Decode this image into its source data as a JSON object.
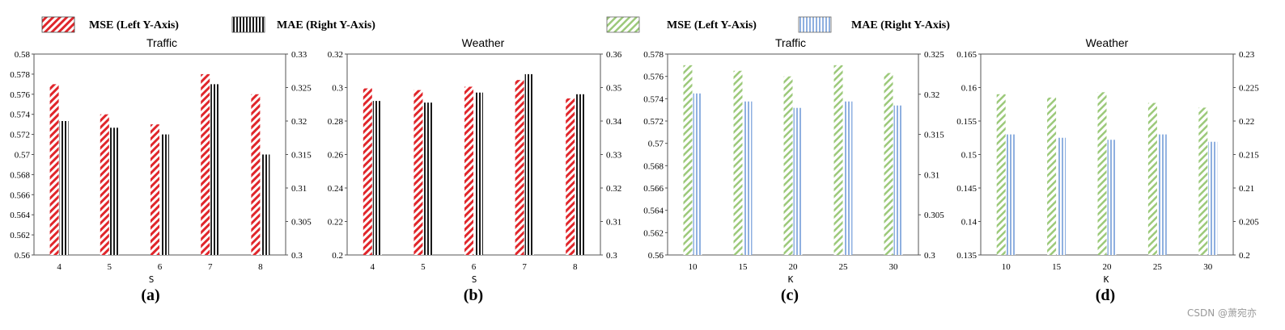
{
  "legends": [
    {
      "label": "MSE (Left Y-Axis)",
      "pattern": "red-diag"
    },
    {
      "label": "MAE (Right Y-Axis)",
      "pattern": "black-vert"
    },
    {
      "label": "MSE (Left Y-Axis)",
      "pattern": "green-diag"
    },
    {
      "label": "MAE (Right Y-Axis)",
      "pattern": "blue-vert"
    }
  ],
  "colors": {
    "mse_red": "#e0262b",
    "mae_black": "#1a1a1a",
    "mse_green": "#9cc97a",
    "mae_blue": "#8fb0e0"
  },
  "watermark": "CSDN @萧宛亦",
  "chart_data": [
    {
      "type": "bar",
      "panel_label": "(a)",
      "title": "Traffic",
      "xlabel": "S",
      "categories": [
        "4",
        "5",
        "6",
        "7",
        "8"
      ],
      "ylim_left": [
        0.56,
        0.58
      ],
      "yticks_left": [
        "0.56",
        "0.562",
        "0.564",
        "0.566",
        "0.568",
        "0.57",
        "0.572",
        "0.574",
        "0.576",
        "0.578",
        "0.58"
      ],
      "ylim_right": [
        0.3,
        0.33
      ],
      "yticks_right": [
        "0.3",
        "0.305",
        "0.31",
        "0.315",
        "0.32",
        "0.325",
        "0.33"
      ],
      "series": [
        {
          "name": "MSE (Left Y-Axis)",
          "axis": "left",
          "pattern": "red-diag",
          "values": [
            0.577,
            0.574,
            0.573,
            0.578,
            0.576
          ]
        },
        {
          "name": "MAE (Right Y-Axis)",
          "axis": "right",
          "pattern": "black-vert",
          "values": [
            0.32,
            0.319,
            0.318,
            0.3255,
            0.315
          ]
        }
      ]
    },
    {
      "type": "bar",
      "panel_label": "(b)",
      "title": "Weather",
      "xlabel": "S",
      "categories": [
        "4",
        "5",
        "6",
        "7",
        "8"
      ],
      "ylim_left": [
        0.2,
        0.32
      ],
      "yticks_left": [
        "0.2",
        "0.22",
        "0.24",
        "0.26",
        "0.28",
        "0.3",
        "0.32"
      ],
      "ylim_right": [
        0.3,
        0.36
      ],
      "yticks_right": [
        "0.3",
        "0.31",
        "0.32",
        "0.33",
        "0.34",
        "0.35",
        "0.36"
      ],
      "series": [
        {
          "name": "MSE (Left Y-Axis)",
          "axis": "left",
          "pattern": "red-diag",
          "values": [
            0.2995,
            0.2985,
            0.3005,
            0.3045,
            0.2935
          ]
        },
        {
          "name": "MAE (Right Y-Axis)",
          "axis": "right",
          "pattern": "black-vert",
          "values": [
            0.346,
            0.3455,
            0.3485,
            0.354,
            0.348
          ]
        }
      ]
    },
    {
      "type": "bar",
      "panel_label": "(c)",
      "title": "Traffic",
      "xlabel": "K",
      "categories": [
        "10",
        "15",
        "20",
        "25",
        "30"
      ],
      "ylim_left": [
        0.56,
        0.578
      ],
      "yticks_left": [
        "0.56",
        "0.562",
        "0.564",
        "0.566",
        "0.568",
        "0.57",
        "0.572",
        "0.574",
        "0.576",
        "0.578"
      ],
      "ylim_right": [
        0.3,
        0.325
      ],
      "yticks_right": [
        "0.3",
        "0.305",
        "0.31",
        "0.315",
        "0.32",
        "0.325"
      ],
      "series": [
        {
          "name": "MSE (Left Y-Axis)",
          "axis": "left",
          "pattern": "green-diag",
          "values": [
            0.577,
            0.5765,
            0.576,
            0.577,
            0.5763
          ]
        },
        {
          "name": "MAE (Right Y-Axis)",
          "axis": "right",
          "pattern": "blue-vert",
          "values": [
            0.3201,
            0.3191,
            0.3183,
            0.3191,
            0.3186
          ]
        }
      ]
    },
    {
      "type": "bar",
      "panel_label": "(d)",
      "title": "Weather",
      "xlabel": "K",
      "categories": [
        "10",
        "15",
        "20",
        "25",
        "30"
      ],
      "ylim_left": [
        0.135,
        0.165
      ],
      "yticks_left": [
        "0.135",
        "0.14",
        "0.145",
        "0.15",
        "0.155",
        "0.16",
        "0.165"
      ],
      "ylim_right": [
        0.2,
        0.23
      ],
      "yticks_right": [
        "0.2",
        "0.205",
        "0.21",
        "0.215",
        "0.22",
        "0.225",
        "0.23"
      ],
      "series": [
        {
          "name": "MSE (Left Y-Axis)",
          "axis": "left",
          "pattern": "green-diag",
          "values": [
            0.159,
            0.1585,
            0.1593,
            0.1577,
            0.157
          ]
        },
        {
          "name": "MAE (Right Y-Axis)",
          "axis": "right",
          "pattern": "blue-vert",
          "values": [
            0.218,
            0.2175,
            0.2172,
            0.218,
            0.2169
          ]
        }
      ]
    }
  ]
}
